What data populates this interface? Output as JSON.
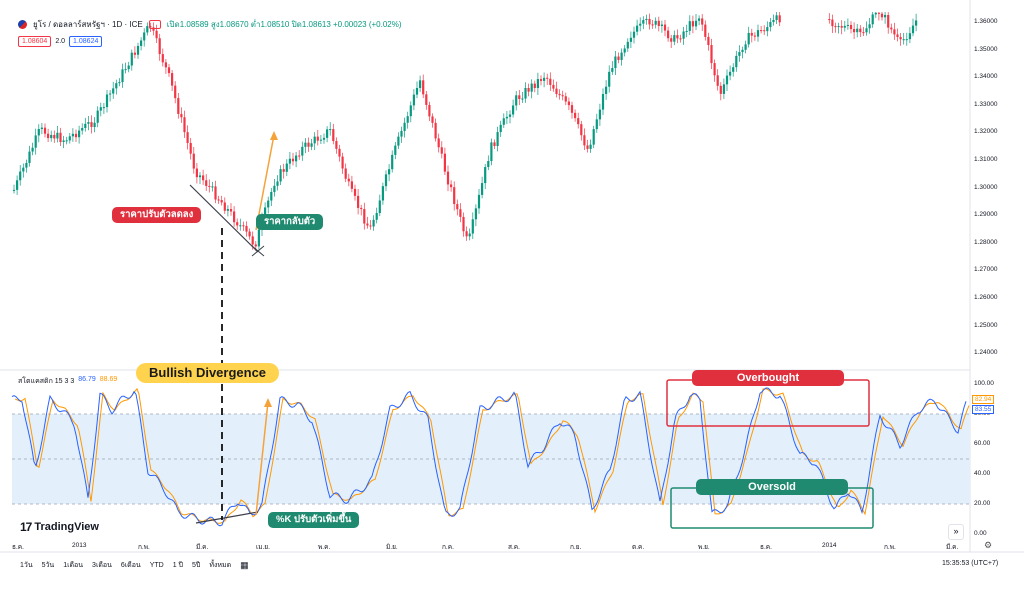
{
  "header": {
    "symbol": "ยูโร / ดอลลาร์สหรัฐฯ · 1D · ICE",
    "ohlc": "เปิด1.08589 สูง1.08670 ต่ำ1.08510 ปิด1.08613 +0.00023 (+0.02%)",
    "sell_price": "1.08604",
    "spread": "2.0",
    "buy_price": "1.08624"
  },
  "price_axis": [
    "1.36000",
    "1.35000",
    "1.34000",
    "1.33000",
    "1.32000",
    "1.31000",
    "1.30000",
    "1.29000",
    "1.28000",
    "1.27000",
    "1.26000",
    "1.25000",
    "1.24000"
  ],
  "indicator": {
    "name": "สโตแคสติก 15 3 3",
    "k_value": "86.79",
    "d_value": "88.69",
    "axis": [
      "100.00",
      "80.00",
      "60.00",
      "40.00",
      "20.00",
      "0.00"
    ],
    "k_badge": "82.94",
    "d_badge": "83.55"
  },
  "annotations": {
    "price_drop": "ราคาปรับตัวลดลง",
    "price_rebound": "ราคากลับตัว",
    "divergence": "Bullish Divergence",
    "k_rise": "%K ปรับตัวเพิ่มขึ้น",
    "overbought": "Overbought",
    "oversold": "Oversold"
  },
  "time_axis": [
    "ธ.ค.",
    "2013",
    "ก.พ.",
    "มี.ค.",
    "เม.ย.",
    "พ.ค.",
    "มิ.ย.",
    "ก.ค.",
    "ส.ค.",
    "ก.ย.",
    "ต.ค.",
    "พ.ย.",
    "ธ.ค.",
    "2014",
    "ก.พ.",
    "มี.ค."
  ],
  "ranges": [
    "1วัน",
    "5วัน",
    "1เดือน",
    "3เดือน",
    "6เดือน",
    "YTD",
    "1 ปี",
    "5ปี",
    "ทั้งหมด"
  ],
  "clock": "15:35:53 (UTC+7)",
  "brand": "TradingView",
  "colors": {
    "up": "#089981",
    "down": "#f23645",
    "k": "#2962ff",
    "d": "#ff9800",
    "band": "#e3f0fb",
    "red_badge": "#e0303e",
    "green_badge": "#1f8a70",
    "yellow_badge": "#ffd34d"
  }
}
